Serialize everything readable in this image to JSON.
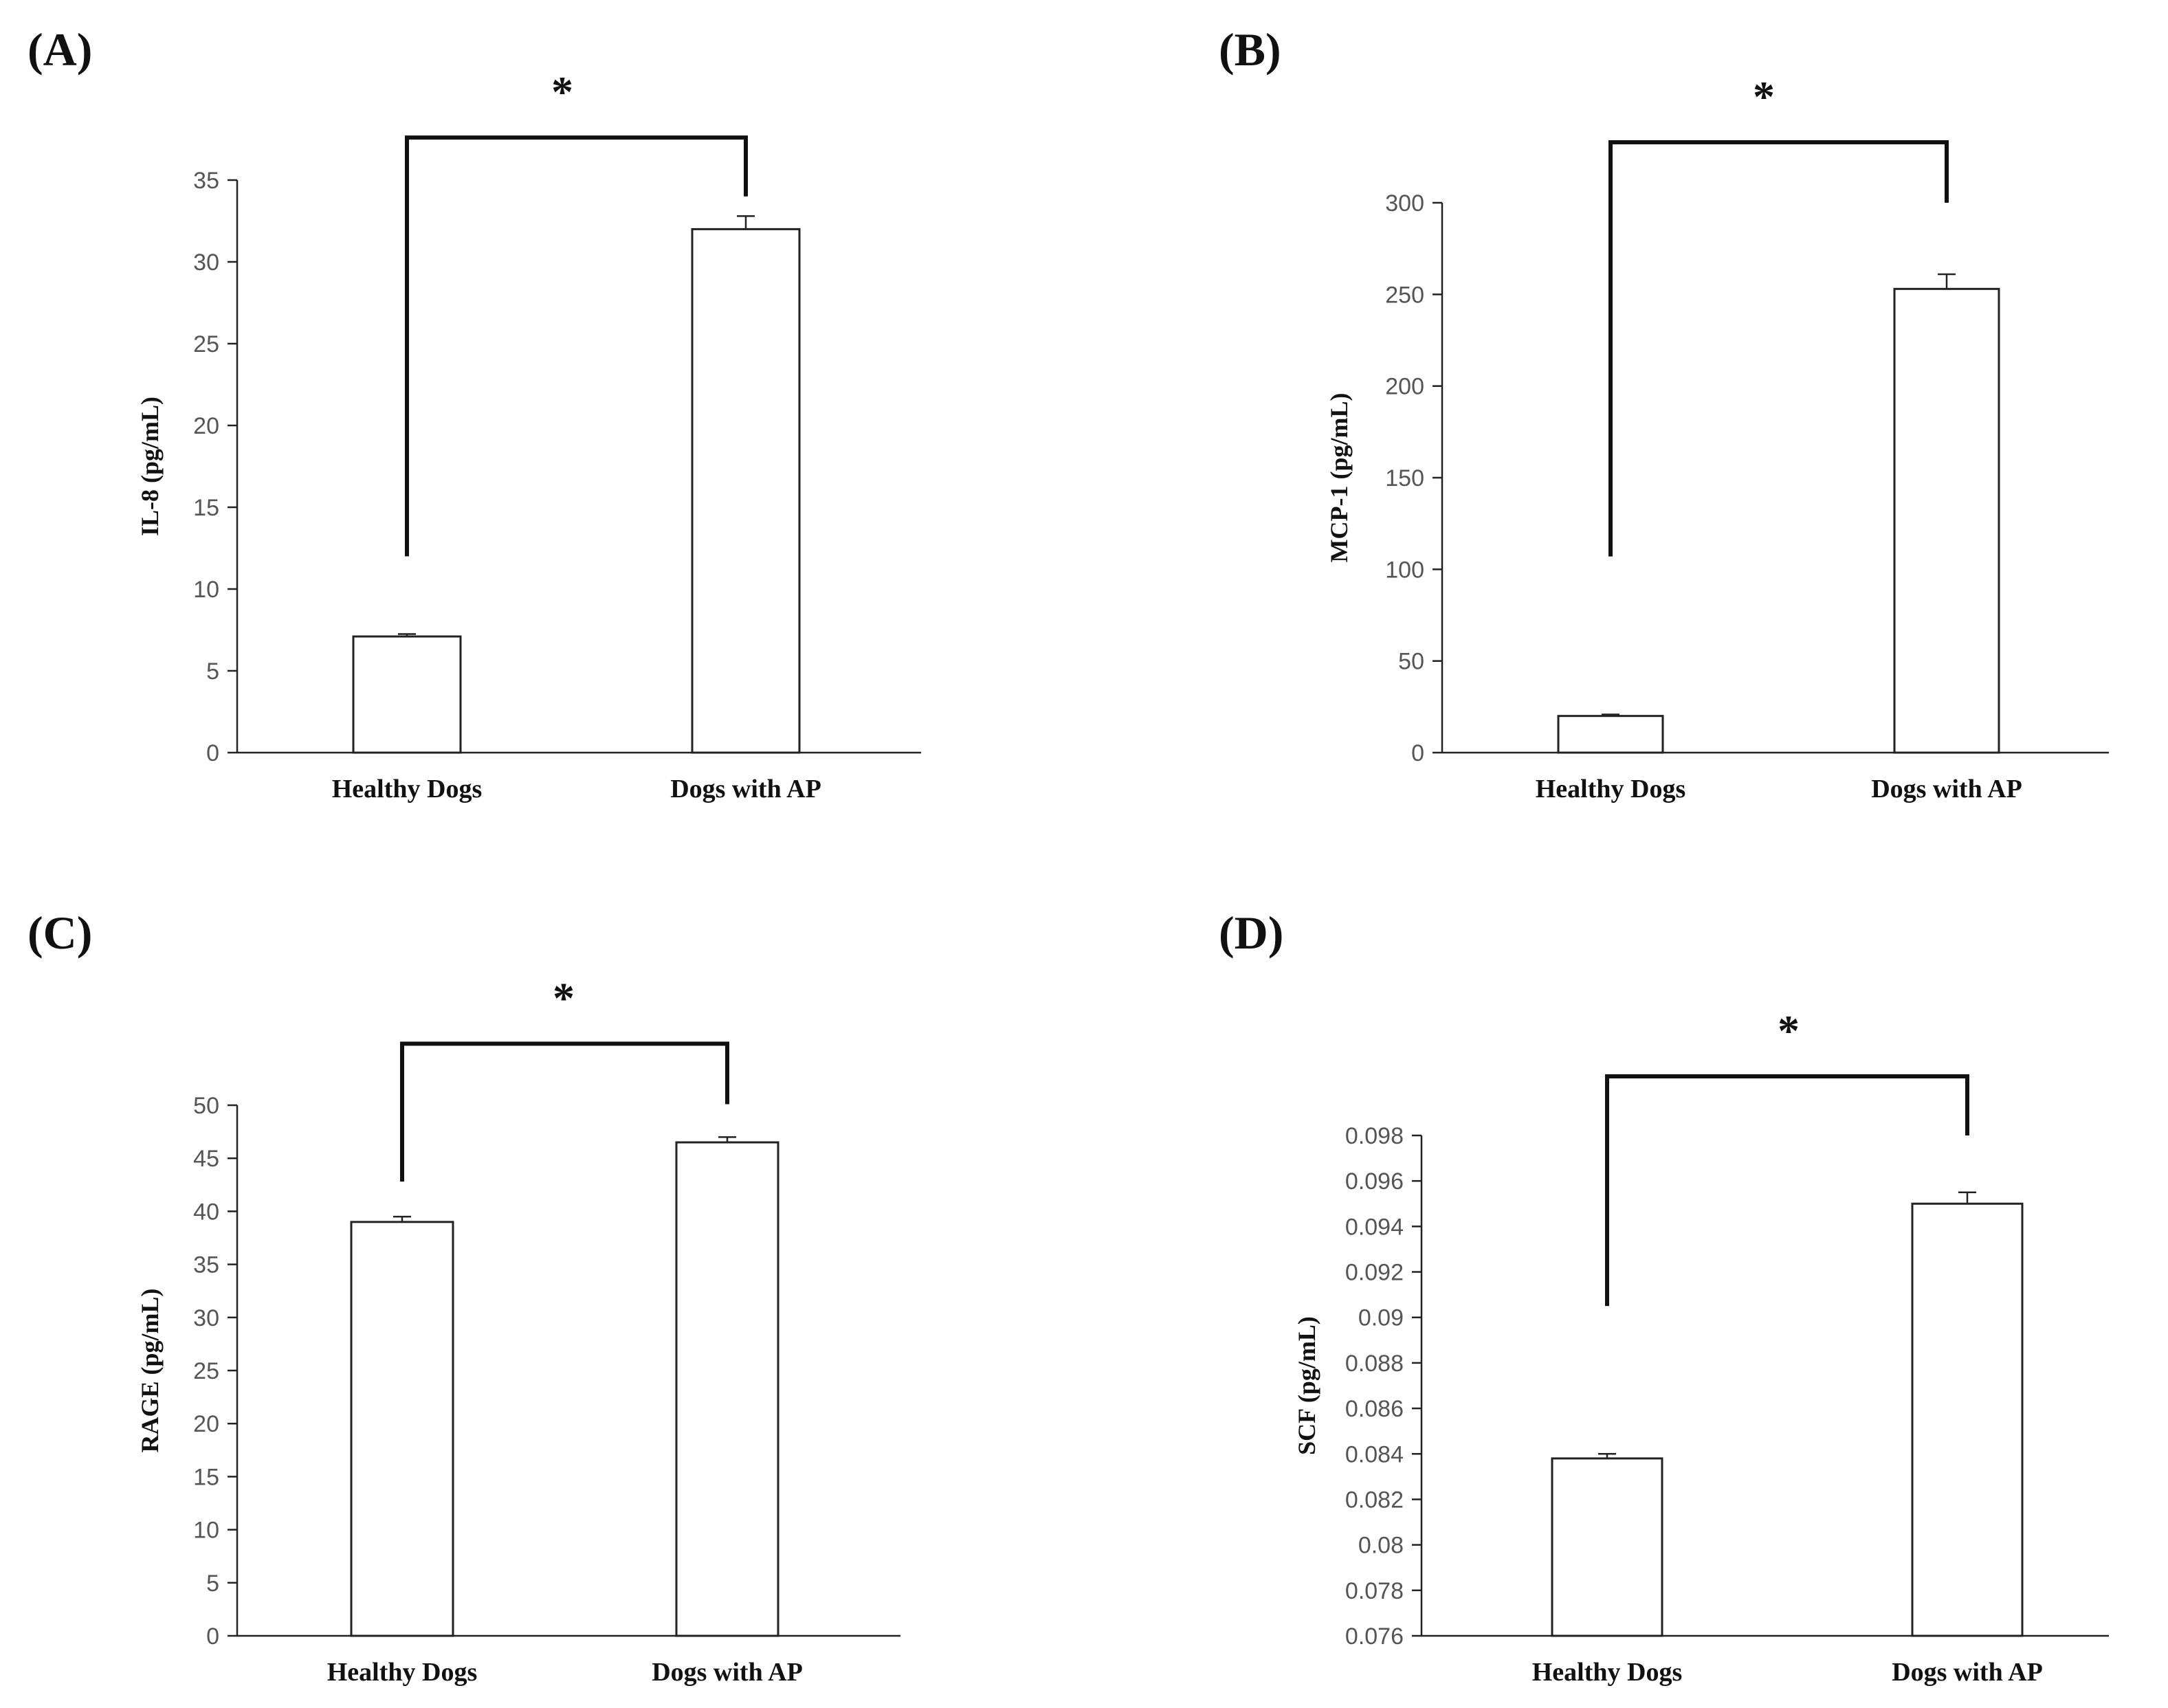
{
  "chart_data": [
    {
      "panel": "(A)",
      "type": "bar",
      "categories": [
        "Healthy Dogs",
        "Dogs with AP"
      ],
      "values": [
        7.1,
        32.0
      ],
      "errors": [
        0.15,
        0.8
      ],
      "ylabel": "IL-8 (pg/mL)",
      "ylim": [
        0,
        35
      ],
      "yticks": [
        0,
        5,
        10,
        15,
        20,
        25,
        30,
        35
      ],
      "tick_labels": [
        "0",
        "5",
        "10",
        "15",
        "20",
        "25",
        "30",
        "35"
      ],
      "significance": {
        "mark": "*",
        "left_leg_start": 12.0,
        "right_leg_start": 34.0,
        "bracket_level": 37.6
      }
    },
    {
      "panel": "(B)",
      "type": "bar",
      "categories": [
        "Healthy Dogs",
        "Dogs with AP"
      ],
      "values": [
        20,
        253
      ],
      "errors": [
        0.8,
        8
      ],
      "ylabel": "MCP-1 (pg/mL)",
      "ylim": [
        0,
        300
      ],
      "yticks": [
        0,
        50,
        100,
        150,
        200,
        250,
        300
      ],
      "tick_labels": [
        "0",
        "50",
        "100",
        "150",
        "200",
        "250",
        "300"
      ],
      "significance": {
        "mark": "*",
        "left_leg_start": 107,
        "right_leg_start": 300,
        "bracket_level": 333
      }
    },
    {
      "panel": "(C)",
      "type": "bar",
      "categories": [
        "Healthy Dogs",
        "Dogs with AP"
      ],
      "values": [
        39.0,
        46.5
      ],
      "errors": [
        0.5,
        0.5
      ],
      "ylabel": "RAGE (pg/mL)",
      "ylim": [
        0,
        50
      ],
      "yticks": [
        0,
        5,
        10,
        15,
        20,
        25,
        30,
        35,
        40,
        45,
        50
      ],
      "tick_labels": [
        "0",
        "5",
        "10",
        "15",
        "20",
        "25",
        "30",
        "35",
        "40",
        "45",
        "50"
      ],
      "significance": {
        "mark": "*",
        "left_leg_start": 42.8,
        "right_leg_start": 50.1,
        "bracket_level": 55.8
      }
    },
    {
      "panel": "(D)",
      "type": "bar",
      "categories": [
        "Healthy Dogs",
        "Dogs with AP"
      ],
      "values": [
        0.0838,
        0.095
      ],
      "errors": [
        0.0002,
        0.0005
      ],
      "ylabel": "SCF (pg/mL)",
      "ylim": [
        0.076,
        0.098
      ],
      "yticks": [
        0.076,
        0.078,
        0.08,
        0.082,
        0.084,
        0.086,
        0.088,
        0.09,
        0.092,
        0.094,
        0.096,
        0.098
      ],
      "tick_labels": [
        "0.076",
        "0.078",
        "0.08",
        "0.082",
        "0.084",
        "0.086",
        "0.088",
        "0.09",
        "0.092",
        "0.094",
        "0.096",
        "0.098"
      ],
      "significance": {
        "mark": "*",
        "left_leg_start": 0.0905,
        "right_leg_start": 0.098,
        "bracket_level": 0.1006
      }
    }
  ]
}
